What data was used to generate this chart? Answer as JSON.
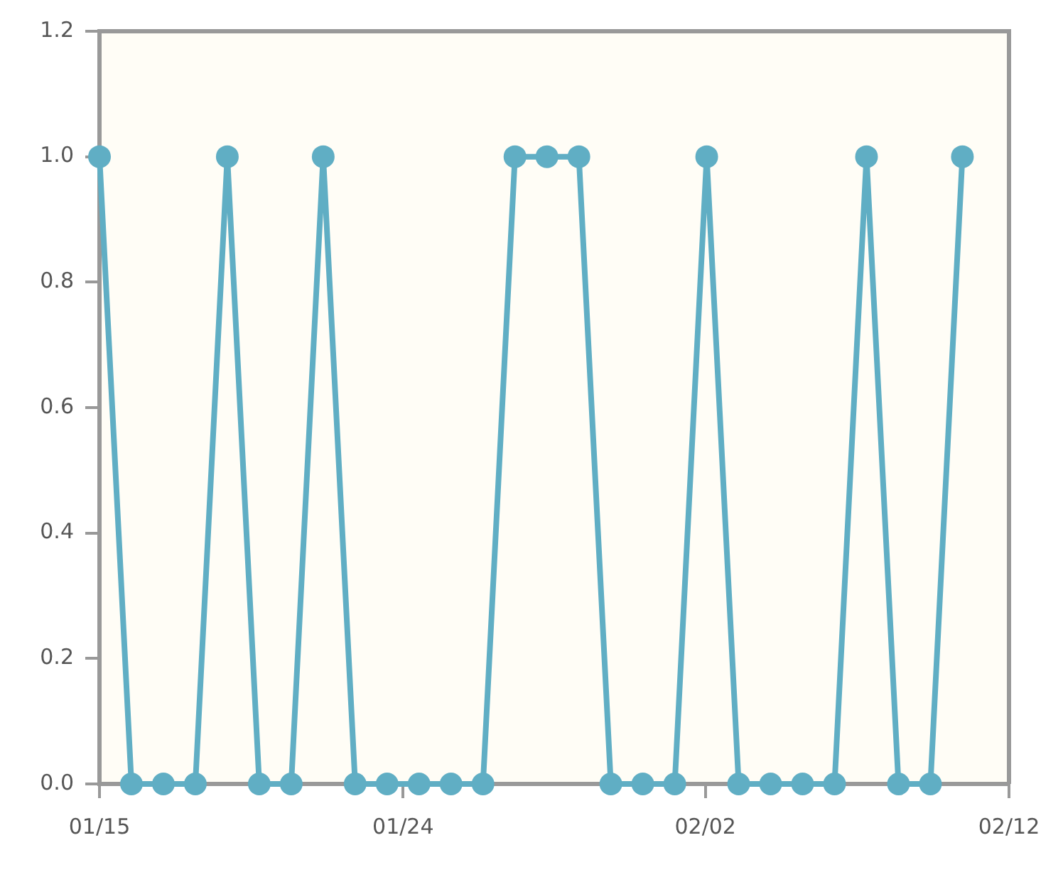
{
  "chart_data": {
    "type": "line",
    "x": [
      "--01-15",
      "--01-16",
      "--01-17",
      "--01-18",
      "--01-19",
      "--01-20",
      "--01-21",
      "--01-22",
      "--01-23",
      "--01-24",
      "--01-25",
      "--01-26",
      "--01-27",
      "--01-28",
      "--01-29",
      "--01-30",
      "--01-31",
      "--02-01",
      "--02-02",
      "--02-03",
      "--02-04",
      "--02-05",
      "--02-06",
      "--02-07",
      "--02-08",
      "--02-09",
      "--02-10",
      "--02-11"
    ],
    "series": [
      {
        "color": "#60aec4",
        "values": [
          1,
          0,
          0,
          0,
          1,
          0,
          0,
          1,
          0,
          0,
          0,
          0,
          0,
          1,
          1,
          1,
          0,
          0,
          0,
          1,
          0,
          0,
          0,
          0,
          1,
          0,
          0,
          1
        ]
      }
    ],
    "xlim": [
      "--01-15",
      "--02-12T11:00"
    ],
    "xticks": [
      {
        "value": "--01-15",
        "label": "01/15"
      },
      {
        "value": "--01-24T12:00",
        "label": "01/24"
      },
      {
        "value": "--02-02T23:00",
        "label": "02/02"
      },
      {
        "value": "--02-12T11:00",
        "label": "02/12"
      }
    ],
    "ylim": [
      0,
      1.2
    ],
    "yticks": [
      {
        "value": 0,
        "label": "0.0"
      },
      0.2,
      0.4,
      0.6,
      0.8,
      {
        "value": 1,
        "label": "1.0"
      },
      1.2
    ],
    "grid": false,
    "legend": false,
    "marker": "circle",
    "line_style": "solid"
  }
}
